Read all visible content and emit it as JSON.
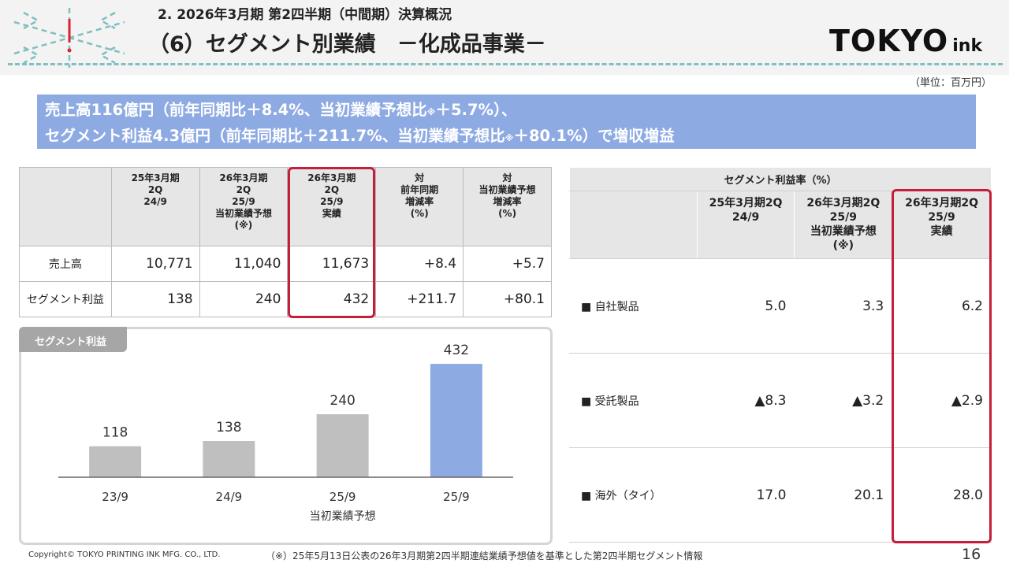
{
  "header": {
    "section_title": "2. 2026年3月期 第2四半期（中間期）決算概況",
    "page_title": "（6）セグメント別業績　－化成品事業－",
    "logo_main": "TOKYO",
    "logo_sub": "ink",
    "unit": "（単位：百万円）"
  },
  "banner": {
    "line1_a": "売上高116億円（前年同期比＋8.4%、当初業績予想比",
    "line1_mark": "※",
    "line1_b": "＋5.7%）、",
    "line2_a": "セグメント利益4.3億円（前年同期比＋211.7%、当初業績予想比",
    "line2_mark": "※",
    "line2_b": "＋80.1%）で増収増益"
  },
  "left_table": {
    "headers": [
      "",
      "25年3月期\n2Q\n24/9",
      "26年3月期\n2Q\n25/9\n当初業績予想\n(※)",
      "26年3月期\n2Q\n25/9\n実績",
      "対\n前年同期\n増減率\n(%)",
      "対\n当初業績予想\n増減率\n(%)"
    ],
    "rows": [
      {
        "label": "売上高",
        "v1": "10,771",
        "v2": "11,040",
        "v3": "11,673",
        "v4": "+8.4",
        "v5": "+5.7"
      },
      {
        "label": "セグメント利益",
        "v1": "138",
        "v2": "240",
        "v3": "432",
        "v4": "+211.7",
        "v5": "+80.1"
      }
    ]
  },
  "chart_card": {
    "tab_label": "セグメント利益"
  },
  "chart_data": {
    "type": "bar",
    "title": "セグメント利益",
    "categories": [
      "23/9",
      "24/9",
      "25/9",
      "25/9"
    ],
    "sublabels": [
      "",
      "",
      "当初業績予想",
      ""
    ],
    "values": [
      118,
      138,
      240,
      432
    ],
    "colors": [
      "#bfbfbf",
      "#bfbfbf",
      "#bfbfbf",
      "#8eaae3"
    ],
    "ylim": [
      0,
      480
    ]
  },
  "right_table": {
    "caption": "セグメント利益率（%）",
    "headers": [
      "",
      "25年3月期2Q\n24/9",
      "26年3月期2Q\n25/9\n当初業績予想\n(※)",
      "26年3月期2Q\n25/9\n実績"
    ],
    "rows": [
      {
        "label": "■ 自社製品",
        "v1": "5.0",
        "v2": "3.3",
        "v3": "6.2"
      },
      {
        "label": "■ 受託製品",
        "v1": "▲8.3",
        "v2": "▲3.2",
        "v3": "▲2.9"
      },
      {
        "label": "■ 海外（タイ）",
        "v1": "17.0",
        "v2": "20.1",
        "v3": "28.0"
      }
    ]
  },
  "footer": {
    "copyright": "Copyright© TOKYO PRINTING INK MFG. CO., LTD.",
    "note": "（※）25年5月13日公表の26年3月期第2四半期連結業績予想値を基準とした第2四半期セグメント情報",
    "page_number": "16"
  },
  "colors": {
    "accent": "#8eaae3",
    "highlight_border": "#c41e3a",
    "bar_gray": "#bfbfbf",
    "teal_dash": "#7fbfbf"
  }
}
